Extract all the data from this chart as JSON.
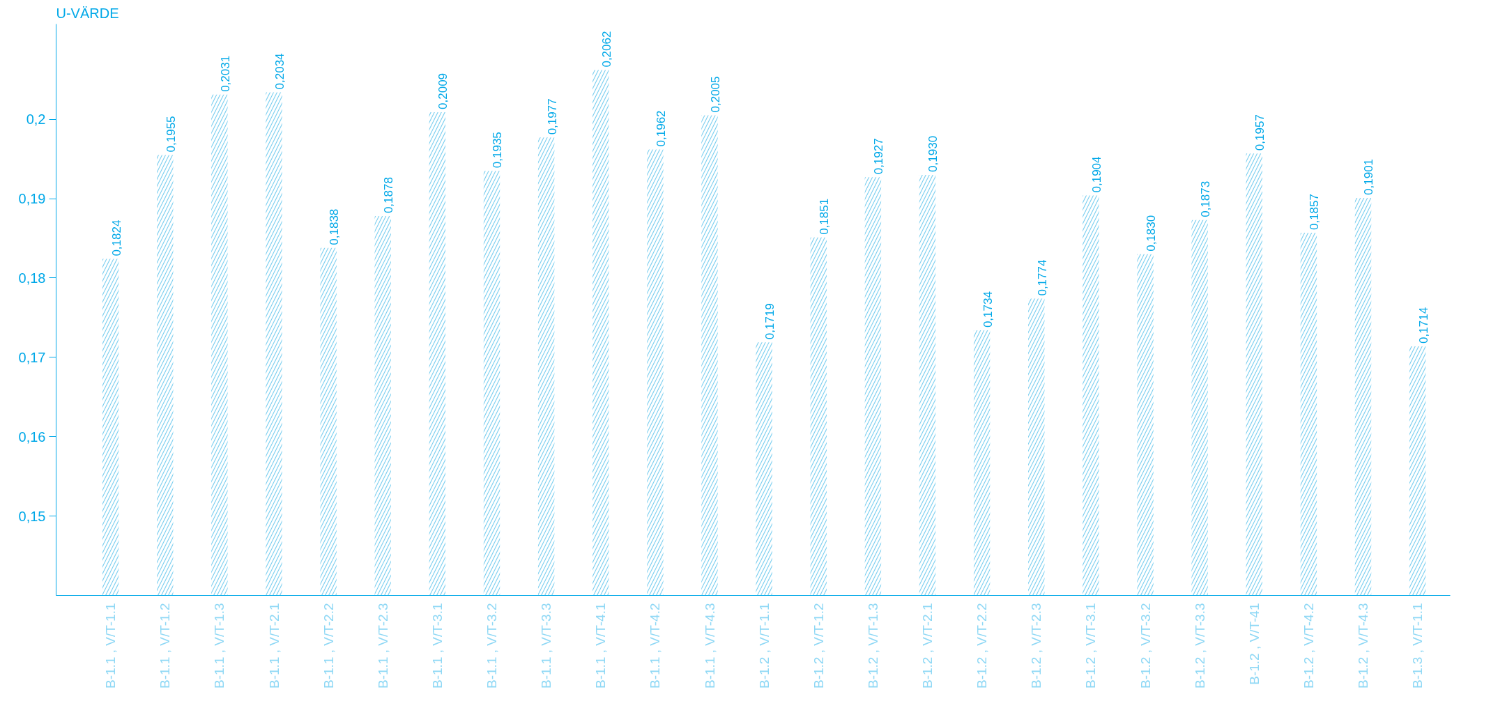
{
  "chart_data": {
    "type": "bar",
    "ylabel": "U-VÄRDE",
    "categories": [
      "B-1.1 , V/T-1.1",
      "B-1.1 , V/T-1.2",
      "B-1.1 , V/T-1.3",
      "B-1.1 , V/T-2.1",
      "B-1.1 , V/T-2.2",
      "B-1.1 , V/T-2.3",
      "B-1.1 , V/T-3.1",
      "B-1.1 , V/T-3.2",
      "B-1.1 , V/T-3.3",
      "B-1.1 , V/T-4.1",
      "B-1.1 , V/T-4.2",
      "B-1.1 , V/T-4.3",
      "B-1.2 , V/T-1.1",
      "B-1.2 , V/T-1.2",
      "B-1.2 , V/T-1.3",
      "B-1.2 , V/T-2.1",
      "B-1.2 , V/T-2.2",
      "B-1.2 , V/T-2.3",
      "B-1.2 , V/T-3.1",
      "B-1.2 , V/T-3.2",
      "B-1.2 , V/T-3.3",
      "B-1.2 , V/T-41",
      "B-1.2 , V/T-4.2",
      "B-1.2 , V/T-4.3",
      "B-1.3 , V/T-1.1"
    ],
    "values": [
      0.1824,
      0.1955,
      0.2031,
      0.2034,
      0.1838,
      0.1878,
      0.2009,
      0.1935,
      0.1977,
      0.2062,
      0.1962,
      0.2005,
      0.1719,
      0.1851,
      0.1927,
      0.193,
      0.1734,
      0.1774,
      0.1904,
      0.183,
      0.1873,
      0.1957,
      0.1857,
      0.1901,
      0.1714
    ],
    "value_labels": [
      "0,1824",
      "0,1955",
      "0,2031",
      "0,2034",
      "0,1838",
      "0,1878",
      "0,2009",
      "0,1935",
      "0,1977",
      "0,2062",
      "0,1962",
      "0,2005",
      "0,1719",
      "0,1851",
      "0,1927",
      "0,1930",
      "0,1734",
      "0,1774",
      "0,1904",
      "0,1830",
      "0,1873",
      "0,1957",
      "0,1857",
      "0,1901",
      "0,1714"
    ],
    "color": "#7fd0f0",
    "ylim": [
      0.14,
      0.212
    ],
    "yticks": [
      {
        "value": 0.15,
        "label": "0,15"
      },
      {
        "value": 0.16,
        "label": "0,16"
      },
      {
        "value": 0.17,
        "label": "0,17"
      },
      {
        "value": 0.18,
        "label": "0,18"
      },
      {
        "value": 0.19,
        "label": "0,19"
      },
      {
        "value": 0.2,
        "label": "0,2"
      }
    ],
    "grid": false
  }
}
